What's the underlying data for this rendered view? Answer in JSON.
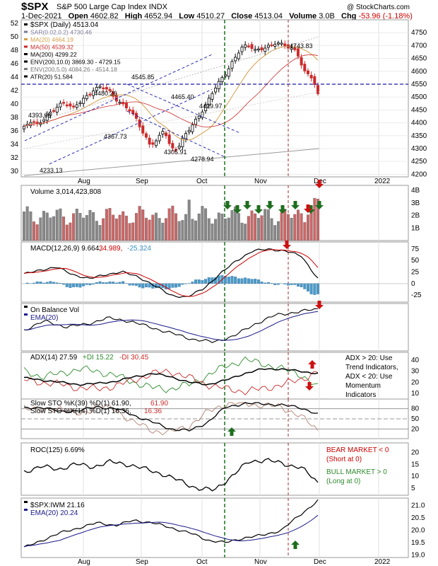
{
  "header": {
    "symbol": "$SPX",
    "name": "S&P 500 Large Cap Index",
    "exchange": "INDX",
    "site": "@ StockCharts.com",
    "date": "1-Dec-2021",
    "open_label": "Open",
    "open": "4602.82",
    "high_label": "High",
    "high": "4652.94",
    "low_label": "Low",
    "low": "4510.27",
    "close_label": "Close",
    "close": "4513.04",
    "volume_label": "Volume",
    "volume": "3.0B",
    "chg_label": "Chg",
    "chg": "-53.96 (-1.18%)"
  },
  "chart_data": [
    {
      "type": "candlestick",
      "panel": "price",
      "legend": [
        {
          "text": "$SPX (Daily) 4513.04",
          "color": "#000000"
        },
        {
          "text": "SAR(0.02,0.2) 4730.46",
          "color": "#7a7a9a"
        },
        {
          "text": "MA(20) 4664.19",
          "color": "#d4a04a"
        },
        {
          "text": "MA(50) 4539.32",
          "color": "#cc2a2a"
        },
        {
          "text": "MA(200) 4299.22",
          "color": "#000000"
        },
        {
          "text": "ENV(200,10.0) 3869.30 - 4729.15",
          "color": "#000000"
        },
        {
          "text": "ENV(200,5.0) 4084.26 - 4514.18",
          "color": "#777777"
        },
        {
          "text": "ATR(20) 51.584",
          "color": "#000000"
        }
      ],
      "ylim": [
        4190,
        4800
      ],
      "right_ticks": [
        4200,
        4250,
        4300,
        4350,
        4400,
        4450,
        4500,
        4550,
        4600,
        4650,
        4700,
        4750
      ],
      "left_ticks": [
        30,
        32,
        34,
        36,
        38,
        40,
        42,
        44,
        46,
        48,
        50,
        52
      ],
      "x_labels": [
        "Aug",
        "Sep",
        "Oct",
        "Nov",
        "Dec",
        "2022"
      ],
      "annotations": [
        "4393.68",
        "4480.26",
        "4545.85",
        "4367.73",
        "4465.40",
        "4305.91",
        "4278.94",
        "4429.97",
        "4743.83",
        "4233.13"
      ],
      "horizontal_line": 4550
    },
    {
      "type": "bar",
      "panel": "volume",
      "legend": "Volume 3,014,423,808",
      "right_ticks": [
        "1B",
        "2B",
        "3B",
        "4B"
      ]
    },
    {
      "type": "line",
      "panel": "macd",
      "legend": [
        {
          "text": "MACD(12,26,9) 9.664,",
          "color": "#000000"
        },
        {
          "text": "34.989,",
          "color": "#cc0000"
        },
        {
          "text": "-25.324",
          "color": "#3c8fc4"
        }
      ],
      "right_ticks": [
        -25,
        0,
        25,
        50,
        75
      ]
    },
    {
      "type": "line",
      "panel": "obv",
      "legend": [
        {
          "text": "On Balance Vol",
          "color": "#000000"
        },
        {
          "text": "EMA(20)",
          "color": "#1a1a8a"
        }
      ]
    },
    {
      "type": "line",
      "panel": "adx",
      "legend": [
        {
          "text": "ADX(14) 27.59",
          "color": "#000000"
        },
        {
          "text": "+DI 15.22",
          "color": "#2e8b2e"
        },
        {
          "text": "-DI 30.45",
          "color": "#cc2a2a"
        }
      ],
      "right_ticks": [
        10,
        20,
        30,
        40
      ],
      "note": [
        "ADX > 20: Use",
        "Trend Indicators,",
        "ADX < 20: Use",
        "Momentum",
        "Indicators"
      ]
    },
    {
      "type": "line",
      "panel": "sto",
      "legend": [
        {
          "text": "Slow STO %K(39) %D(1) 61.90,",
          "color": "#000000"
        },
        {
          "text": "61.90",
          "color": "#cc2a2a"
        },
        {
          "text": "Slow STO %K(14) %D(1) 16.36,",
          "color": "#000000"
        },
        {
          "text": "16.36",
          "color": "#cc2a2a"
        }
      ],
      "right_ticks": [
        20,
        50,
        80
      ]
    },
    {
      "type": "line",
      "panel": "roc",
      "legend": "ROC(125) 6.69%",
      "right_ticks": [
        5,
        10,
        15,
        20
      ],
      "note_bear": [
        "BEAR MARKET < 0",
        "(Short at 0)"
      ],
      "note_bull": [
        "BULL MARKET > 0",
        "(Long at 0)"
      ]
    },
    {
      "type": "line",
      "panel": "ratio",
      "legend": [
        {
          "text": "$SPX:IWM 21.16",
          "color": "#000000"
        },
        {
          "text": "EMA(20) 20.24",
          "color": "#1a1a8a"
        }
      ],
      "right_ticks": [
        "19.0",
        "19.5",
        "20.0",
        "20.5",
        "21.0"
      ],
      "x_labels": [
        "Aug",
        "Sep",
        "Oct",
        "Nov",
        "Dec",
        "2022"
      ]
    }
  ]
}
